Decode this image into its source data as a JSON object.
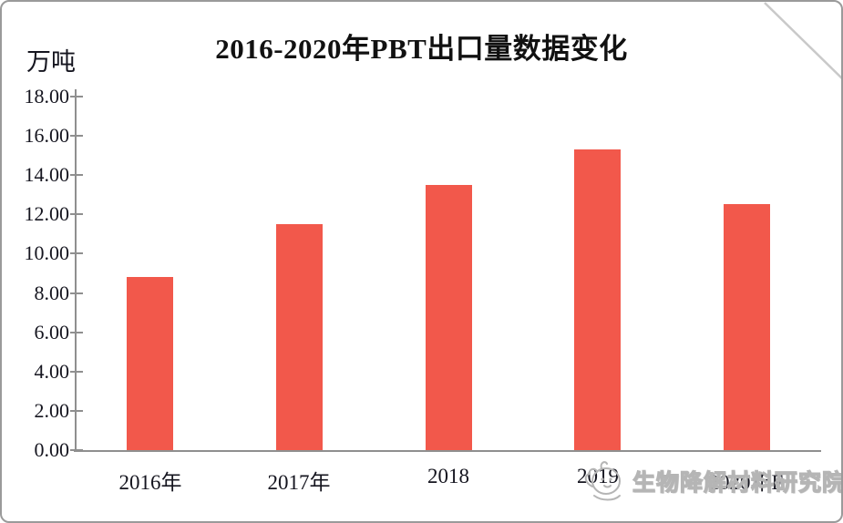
{
  "chart_data": {
    "type": "bar",
    "title": "2016-2020年PBT出口量数据变化",
    "ylabel_unit": "万吨",
    "categories": [
      "2016年",
      "2017年",
      "2018",
      "2019",
      "2020年E"
    ],
    "values": [
      8.8,
      11.5,
      13.5,
      15.3,
      12.5
    ],
    "ylim": [
      0,
      18
    ],
    "ytick_step": 2,
    "ytick_labels": [
      "18.00",
      "16.00",
      "14.00",
      "12.00",
      "10.00",
      "8.00",
      "6.00",
      "4.00",
      "2.00",
      "0.00"
    ],
    "bar_color": "#f2584b",
    "axis_color": "#8f8f8f",
    "text_color": "#15151f",
    "grid": false,
    "legend": "none"
  },
  "watermark": {
    "text": "生物降解材料研究院",
    "logo": "mascot-outline-logo",
    "color": "#b5b5b5"
  },
  "decorations": {
    "frame_border_color": "#9a9a9a",
    "corner_diagonal_color": "#c9c9c9"
  }
}
